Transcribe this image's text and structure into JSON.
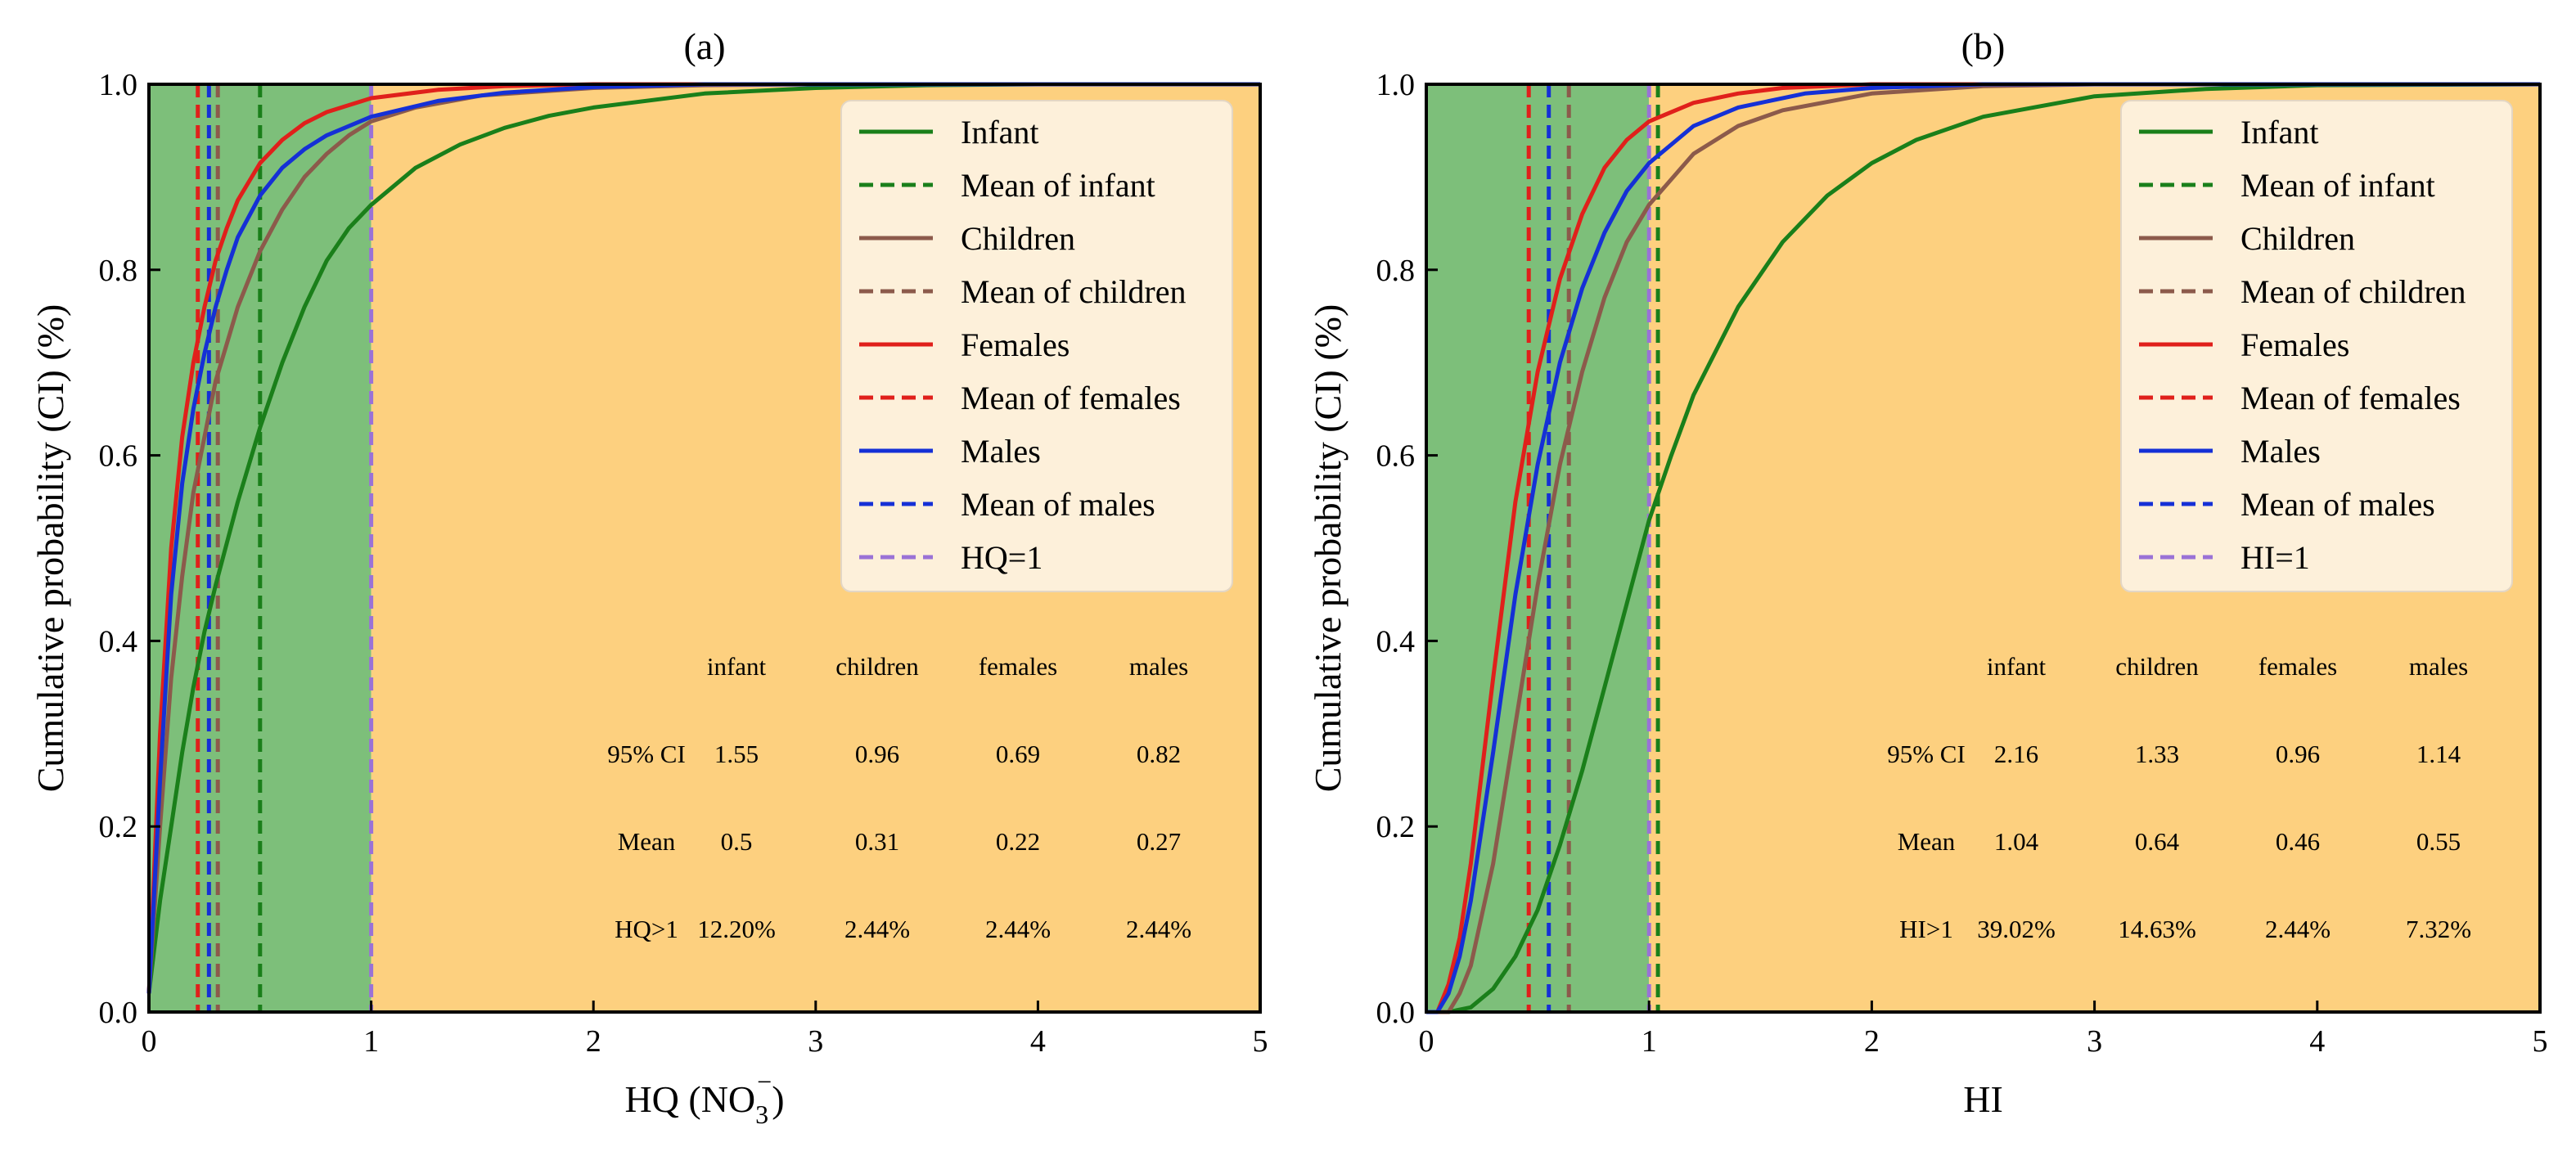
{
  "chart_data": [
    {
      "type": "line",
      "panel_title": "(a)",
      "xlabel_main": "HQ (NO",
      "xlabel_sub": "3",
      "xlabel_sup": "−",
      "xlabel_close": ")",
      "ylabel": "Cumulative probability (CI) (%)",
      "xlim": [
        0,
        5
      ],
      "ylim": [
        0,
        1.0
      ],
      "xticks": [
        "0",
        "1",
        "2",
        "3",
        "4",
        "5"
      ],
      "yticks": [
        "0.0",
        "0.2",
        "0.4",
        "0.6",
        "0.8",
        "1.0"
      ],
      "shaded_regions": [
        {
          "name": "safe",
          "from": 0,
          "to": 1,
          "color": "#7dbf7a"
        },
        {
          "name": "risk",
          "from": 1,
          "to": 5,
          "color": "#fdd07f"
        }
      ],
      "series": [
        {
          "name": "Infant",
          "color": "#1a7f1a",
          "style": "solid",
          "x": [
            0,
            0.05,
            0.1,
            0.15,
            0.2,
            0.25,
            0.3,
            0.4,
            0.5,
            0.6,
            0.7,
            0.8,
            0.9,
            1.0,
            1.2,
            1.4,
            1.6,
            1.8,
            2.0,
            2.5,
            3.0,
            3.5,
            4.0,
            5.0
          ],
          "y": [
            0.02,
            0.12,
            0.2,
            0.28,
            0.35,
            0.41,
            0.46,
            0.55,
            0.63,
            0.7,
            0.76,
            0.81,
            0.845,
            0.87,
            0.91,
            0.935,
            0.953,
            0.966,
            0.975,
            0.99,
            0.996,
            0.999,
            1.0,
            1.0
          ]
        },
        {
          "name": "Children",
          "color": "#8c5a4b",
          "style": "solid",
          "x": [
            0,
            0.05,
            0.1,
            0.15,
            0.2,
            0.25,
            0.3,
            0.35,
            0.4,
            0.5,
            0.6,
            0.7,
            0.8,
            0.9,
            1.0,
            1.2,
            1.5,
            2.0,
            2.5,
            3.0,
            5.0
          ],
          "y": [
            0.02,
            0.2,
            0.36,
            0.47,
            0.56,
            0.62,
            0.68,
            0.72,
            0.76,
            0.82,
            0.865,
            0.9,
            0.925,
            0.945,
            0.96,
            0.975,
            0.988,
            0.996,
            0.999,
            1.0,
            1.0
          ]
        },
        {
          "name": "Females",
          "color": "#e0201b",
          "style": "solid",
          "x": [
            0,
            0.05,
            0.1,
            0.15,
            0.2,
            0.25,
            0.3,
            0.35,
            0.4,
            0.5,
            0.6,
            0.7,
            0.8,
            1.0,
            1.3,
            1.6,
            2.0,
            5.0
          ],
          "y": [
            0.02,
            0.3,
            0.5,
            0.62,
            0.7,
            0.76,
            0.81,
            0.845,
            0.875,
            0.915,
            0.94,
            0.958,
            0.97,
            0.985,
            0.994,
            0.998,
            1.0,
            1.0
          ]
        },
        {
          "name": "Males",
          "color": "#1530d6",
          "style": "solid",
          "x": [
            0,
            0.05,
            0.1,
            0.15,
            0.2,
            0.25,
            0.3,
            0.35,
            0.4,
            0.5,
            0.6,
            0.7,
            0.8,
            1.0,
            1.3,
            1.6,
            2.0,
            2.5,
            5.0
          ],
          "y": [
            0.02,
            0.25,
            0.45,
            0.57,
            0.65,
            0.71,
            0.76,
            0.8,
            0.835,
            0.88,
            0.91,
            0.93,
            0.945,
            0.965,
            0.982,
            0.991,
            0.997,
            1.0,
            1.0
          ]
        }
      ],
      "mean_lines": [
        {
          "name": "Mean of infant",
          "x": 0.5,
          "color": "#1a7f1a"
        },
        {
          "name": "Mean of children",
          "x": 0.31,
          "color": "#8c5a4b"
        },
        {
          "name": "Mean of females",
          "x": 0.22,
          "color": "#e0201b"
        },
        {
          "name": "Mean of males",
          "x": 0.27,
          "color": "#1530d6"
        },
        {
          "name": "HQ=1",
          "x": 1.0,
          "color": "#9a72d6"
        }
      ],
      "legend": {
        "placement": "top-right",
        "entries": [
          {
            "label": "Infant",
            "color": "#1a7f1a",
            "style": "solid"
          },
          {
            "label": "Mean of infant",
            "color": "#1a7f1a",
            "style": "dashed"
          },
          {
            "label": "Children",
            "color": "#8c5a4b",
            "style": "solid"
          },
          {
            "label": "Mean of children",
            "color": "#8c5a4b",
            "style": "dashed"
          },
          {
            "label": "Females",
            "color": "#e0201b",
            "style": "solid"
          },
          {
            "label": "Mean of females",
            "color": "#e0201b",
            "style": "dashed"
          },
          {
            "label": "Males",
            "color": "#1530d6",
            "style": "solid"
          },
          {
            "label": "Mean of males",
            "color": "#1530d6",
            "style": "dashed"
          },
          {
            "label": "HQ=1",
            "color": "#9a72d6",
            "style": "dashed"
          }
        ]
      },
      "stats_table": {
        "header": [
          "infant",
          "children",
          "females",
          "males"
        ],
        "rows": [
          {
            "label": "95% CI",
            "values": [
              "1.55",
              "0.96",
              "0.69",
              "0.82"
            ]
          },
          {
            "label": "Mean",
            "values": [
              "0.5",
              "0.31",
              "0.22",
              "0.27"
            ]
          },
          {
            "label": "HQ>1",
            "values": [
              "12.20%",
              "2.44%",
              "2.44%",
              "2.44%"
            ]
          }
        ]
      }
    },
    {
      "type": "line",
      "panel_title": "(b)",
      "xlabel": "HI",
      "ylabel": "Cumulative probability (CI) (%)",
      "xlim": [
        0,
        5
      ],
      "ylim": [
        0,
        1.0
      ],
      "xticks": [
        "0",
        "1",
        "2",
        "3",
        "4",
        "5"
      ],
      "yticks": [
        "0.0",
        "0.2",
        "0.4",
        "0.6",
        "0.8",
        "1.0"
      ],
      "shaded_regions": [
        {
          "name": "safe",
          "from": 0,
          "to": 1,
          "color": "#7dbf7a"
        },
        {
          "name": "risk",
          "from": 1,
          "to": 5,
          "color": "#fdd07f"
        }
      ],
      "series": [
        {
          "name": "Infant",
          "color": "#1a7f1a",
          "style": "solid",
          "x": [
            0,
            0.1,
            0.2,
            0.3,
            0.4,
            0.5,
            0.6,
            0.7,
            0.8,
            0.9,
            1.0,
            1.1,
            1.2,
            1.4,
            1.6,
            1.8,
            2.0,
            2.2,
            2.5,
            3.0,
            3.5,
            4.0,
            5.0
          ],
          "y": [
            0,
            0.0,
            0.005,
            0.025,
            0.06,
            0.11,
            0.18,
            0.26,
            0.35,
            0.44,
            0.53,
            0.6,
            0.665,
            0.76,
            0.83,
            0.88,
            0.915,
            0.94,
            0.965,
            0.987,
            0.995,
            0.999,
            1.0
          ]
        },
        {
          "name": "Children",
          "color": "#8c5a4b",
          "style": "solid",
          "x": [
            0,
            0.1,
            0.15,
            0.2,
            0.3,
            0.4,
            0.5,
            0.6,
            0.7,
            0.8,
            0.9,
            1.0,
            1.2,
            1.4,
            1.6,
            2.0,
            2.5,
            3.0,
            5.0
          ],
          "y": [
            0,
            0.0,
            0.02,
            0.05,
            0.16,
            0.31,
            0.46,
            0.59,
            0.69,
            0.77,
            0.83,
            0.87,
            0.925,
            0.955,
            0.972,
            0.99,
            0.998,
            1.0,
            1.0
          ]
        },
        {
          "name": "Females",
          "color": "#e0201b",
          "style": "solid",
          "x": [
            0,
            0.05,
            0.1,
            0.15,
            0.2,
            0.3,
            0.4,
            0.5,
            0.6,
            0.7,
            0.8,
            0.9,
            1.0,
            1.2,
            1.4,
            1.6,
            2.0,
            5.0
          ],
          "y": [
            0,
            0.0,
            0.03,
            0.08,
            0.16,
            0.36,
            0.55,
            0.69,
            0.79,
            0.86,
            0.91,
            0.94,
            0.96,
            0.98,
            0.99,
            0.996,
            1.0,
            1.0
          ]
        },
        {
          "name": "Males",
          "color": "#1530d6",
          "style": "solid",
          "x": [
            0,
            0.05,
            0.1,
            0.15,
            0.2,
            0.3,
            0.4,
            0.5,
            0.6,
            0.7,
            0.8,
            0.9,
            1.0,
            1.2,
            1.4,
            1.7,
            2.0,
            2.5,
            5.0
          ],
          "y": [
            0,
            0.0,
            0.02,
            0.06,
            0.12,
            0.28,
            0.45,
            0.59,
            0.7,
            0.78,
            0.84,
            0.885,
            0.915,
            0.955,
            0.975,
            0.99,
            0.996,
            1.0,
            1.0
          ]
        }
      ],
      "mean_lines": [
        {
          "name": "Mean of infant",
          "x": 1.04,
          "color": "#1a7f1a"
        },
        {
          "name": "Mean of children",
          "x": 0.64,
          "color": "#8c5a4b"
        },
        {
          "name": "Mean of females",
          "x": 0.46,
          "color": "#e0201b"
        },
        {
          "name": "Mean of males",
          "x": 0.55,
          "color": "#1530d6"
        },
        {
          "name": "HI=1",
          "x": 1.0,
          "color": "#9a72d6"
        }
      ],
      "legend": {
        "placement": "top-right",
        "entries": [
          {
            "label": "Infant",
            "color": "#1a7f1a",
            "style": "solid"
          },
          {
            "label": "Mean of infant",
            "color": "#1a7f1a",
            "style": "dashed"
          },
          {
            "label": "Children",
            "color": "#8c5a4b",
            "style": "solid"
          },
          {
            "label": "Mean of children",
            "color": "#8c5a4b",
            "style": "dashed"
          },
          {
            "label": "Females",
            "color": "#e0201b",
            "style": "solid"
          },
          {
            "label": "Mean of females",
            "color": "#e0201b",
            "style": "dashed"
          },
          {
            "label": "Males",
            "color": "#1530d6",
            "style": "solid"
          },
          {
            "label": "Mean of males",
            "color": "#1530d6",
            "style": "dashed"
          },
          {
            "label": "HI=1",
            "color": "#9a72d6",
            "style": "dashed"
          }
        ]
      },
      "stats_table": {
        "header": [
          "infant",
          "children",
          "females",
          "males"
        ],
        "rows": [
          {
            "label": "95% CI",
            "values": [
              "2.16",
              "1.33",
              "0.96",
              "1.14"
            ]
          },
          {
            "label": "Mean",
            "values": [
              "1.04",
              "0.64",
              "0.46",
              "0.55"
            ]
          },
          {
            "label": "HI>1",
            "values": [
              "39.02%",
              "14.63%",
              "2.44%",
              "7.32%"
            ]
          }
        ]
      }
    }
  ]
}
